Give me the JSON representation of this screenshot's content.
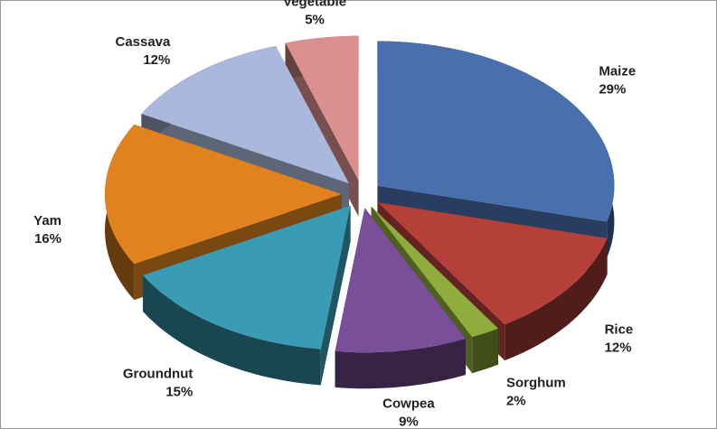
{
  "chart_data": {
    "type": "pie",
    "categories": [
      "Maize",
      "Rice",
      "Sorghum",
      "Cowpea",
      "Groundnut",
      "Yam",
      "Cassava",
      "Vegetable"
    ],
    "values": [
      29,
      12,
      2,
      9,
      15,
      16,
      12,
      5
    ],
    "value_labels": [
      "29%",
      "12%",
      "2%",
      "9%",
      "15%",
      "16%",
      "12%",
      "5%"
    ],
    "colors": [
      "#4a6fae",
      "#b5403a",
      "#8fad3c",
      "#7a4f9a",
      "#3a9bb5",
      "#e0821e",
      "#a9b8dc",
      "#d9908f"
    ]
  }
}
